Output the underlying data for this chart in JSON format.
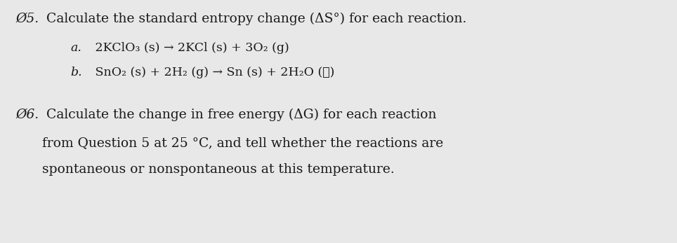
{
  "background_color": "#e8e8e8",
  "text_color": "#1a1a1a",
  "q5_number": "Ø5.",
  "q5_title": " Calculate the standard entropy change (ΔS°) for each reaction.",
  "q5a_label": "a.",
  "q5a_text": " 2KClO₃ (s) → 2KCl (s) + 3O₂ (g)",
  "q5b_label": "b.",
  "q5b_text": " SnO₂ (s) + 2H₂ (g) → Sn (s) + 2H₂O (ℓ)",
  "q6_number": "Ø6.",
  "q6_line1": " Calculate the change in free energy (ΔG) for each reaction",
  "q6_line2": "from Question 5 at 25 °C, and tell whether the reactions are",
  "q6_line3": "spontaneous or nonspontaneous at this temperature.",
  "font_size_main": 13.5,
  "font_size_sub": 12.5,
  "font_family": "DejaVu Serif"
}
